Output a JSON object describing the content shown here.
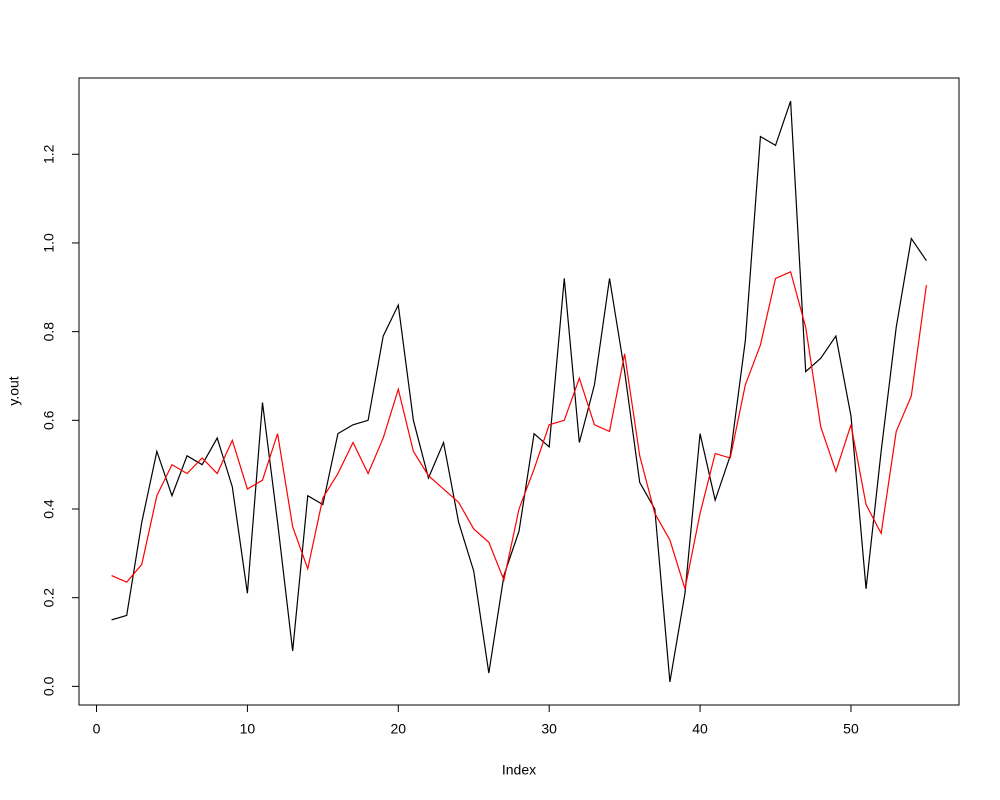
{
  "chart_data": {
    "type": "line",
    "x_label": "Index",
    "y_label": "y.out",
    "x": [
      1,
      2,
      3,
      4,
      5,
      6,
      7,
      8,
      9,
      10,
      11,
      12,
      13,
      14,
      15,
      16,
      17,
      18,
      19,
      20,
      21,
      22,
      23,
      24,
      25,
      26,
      27,
      28,
      29,
      30,
      31,
      32,
      33,
      34,
      35,
      36,
      37,
      38,
      39,
      40,
      41,
      42,
      43,
      44,
      45,
      46,
      47,
      48,
      49,
      50,
      51,
      52,
      53,
      54,
      55
    ],
    "series": [
      {
        "color": "#000000",
        "values": [
          0.15,
          0.16,
          0.37,
          0.53,
          0.43,
          0.52,
          0.5,
          0.56,
          0.45,
          0.21,
          0.64,
          0.37,
          0.08,
          0.43,
          0.41,
          0.57,
          0.59,
          0.6,
          0.79,
          0.86,
          0.6,
          0.47,
          0.55,
          0.37,
          0.26,
          0.03,
          0.25,
          0.35,
          0.57,
          0.54,
          0.92,
          0.55,
          0.68,
          0.92,
          0.71,
          0.46,
          0.4,
          0.01,
          0.21,
          0.57,
          0.42,
          0.52,
          0.78,
          1.24,
          1.22,
          1.32,
          0.71,
          0.74,
          0.79,
          0.61,
          0.22,
          0.53,
          0.81,
          1.01,
          0.96
        ]
      },
      {
        "color": "#ff0000",
        "values": [
          0.25,
          0.235,
          0.275,
          0.43,
          0.5,
          0.48,
          0.515,
          0.48,
          0.555,
          0.445,
          0.465,
          0.57,
          0.36,
          0.265,
          0.425,
          0.48,
          0.55,
          0.48,
          0.56,
          0.67,
          0.53,
          0.475,
          0.445,
          0.415,
          0.355,
          0.325,
          0.24,
          0.4,
          0.49,
          0.59,
          0.6,
          0.695,
          0.59,
          0.575,
          0.75,
          0.52,
          0.39,
          0.33,
          0.22,
          0.39,
          0.525,
          0.515,
          0.68,
          0.77,
          0.92,
          0.935,
          0.81,
          0.585,
          0.485,
          0.59,
          0.41,
          0.345,
          0.575,
          0.655,
          0.905
        ]
      }
    ],
    "xlim": [
      -1.16,
      57.16
    ],
    "ylim": [
      -0.042,
      1.372
    ],
    "xticks": [
      0,
      10,
      20,
      30,
      40,
      50
    ],
    "yticks": [
      {
        "value": 0,
        "label": "0.0"
      },
      0.2,
      0.4,
      0.6,
      0.8,
      {
        "value": 1,
        "label": "1.0"
      },
      1.2
    ]
  }
}
